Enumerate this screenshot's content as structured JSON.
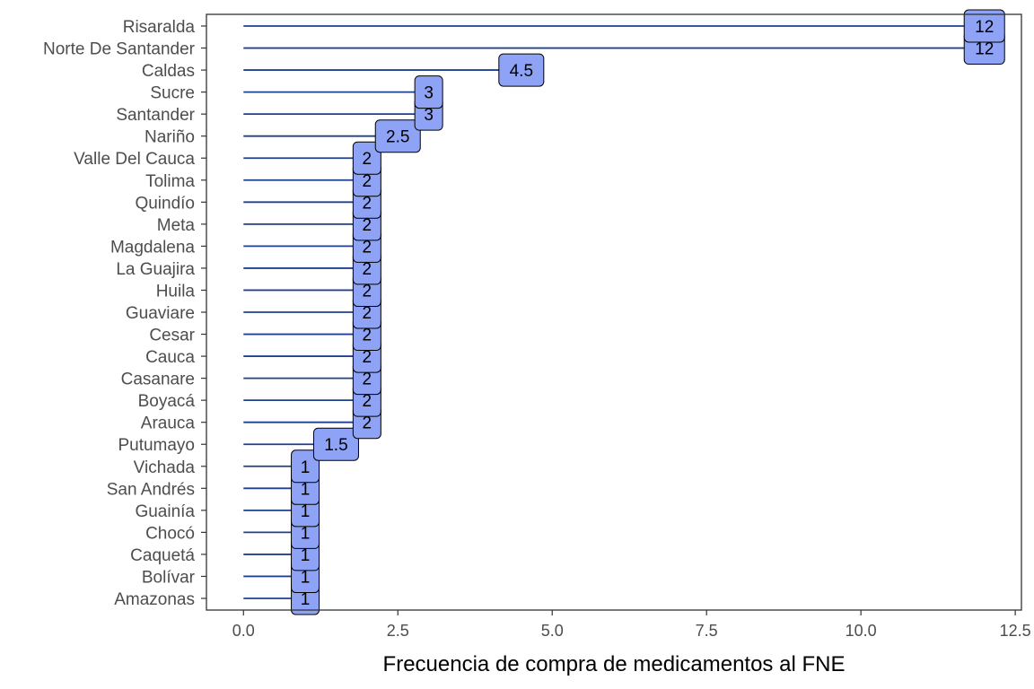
{
  "chart_data": {
    "type": "bar",
    "orientation": "horizontal",
    "style": "lollipop-with-labels",
    "categories": [
      "Risaralda",
      "Norte De Santander",
      "Caldas",
      "Sucre",
      "Santander",
      "Nariño",
      "Valle Del Cauca",
      "Tolima",
      "Quindío",
      "Meta",
      "Magdalena",
      "La Guajira",
      "Huila",
      "Guaviare",
      "Cesar",
      "Cauca",
      "Casanare",
      "Boyacá",
      "Arauca",
      "Putumayo",
      "Vichada",
      "San Andrés",
      "Guainía",
      "Chocó",
      "Caquetá",
      "Bolívar",
      "Amazonas"
    ],
    "values": [
      12,
      12,
      4.5,
      3,
      3,
      2.5,
      2,
      2,
      2,
      2,
      2,
      2,
      2,
      2,
      2,
      2,
      2,
      2,
      2,
      1.5,
      1,
      1,
      1,
      1,
      1,
      1,
      1
    ],
    "data_labels": [
      "12",
      "12",
      "4.5",
      "3",
      "3",
      "2.5",
      "2",
      "2",
      "2",
      "2",
      "2",
      "2",
      "2",
      "2",
      "2",
      "2",
      "2",
      "2",
      "2",
      "1.5",
      "1",
      "1",
      "1",
      "1",
      "1",
      "1",
      "1"
    ],
    "xlabel": "Frecuencia de compra de medicamentos al FNE",
    "ylabel": "",
    "xlim": [
      -0.6,
      12.6
    ],
    "x_ticks": [
      0,
      2.5,
      5,
      7.5,
      10,
      12.5
    ],
    "x_tick_labels": [
      "0.0",
      "2.5",
      "5.0",
      "7.5",
      "10.0",
      "12.5"
    ],
    "grid": false,
    "legend": "none",
    "colors": {
      "line": "#1f3f8f",
      "label_fill": "#8ea3f5",
      "label_border": "#000000",
      "panel_border": "#333333",
      "axis_text": "#4d4d4d"
    }
  }
}
